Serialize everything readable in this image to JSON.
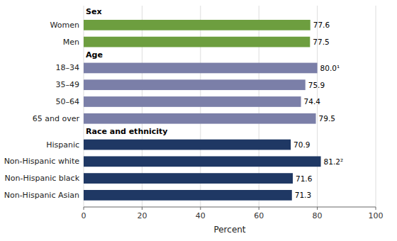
{
  "chart_data": {
    "type": "bar",
    "orientation": "horizontal",
    "categories": [
      "Women",
      "Men",
      "18–34",
      "35–49",
      "50–64",
      "65 and over",
      "Hispanic",
      "Non-Hispanic white",
      "Non-Hispanic black",
      "Non-Hispanic Asian"
    ],
    "values": [
      77.6,
      77.5,
      80.0,
      75.9,
      74.4,
      79.5,
      70.9,
      81.2,
      71.6,
      71.3
    ],
    "value_labels": [
      "77.6",
      "77.5",
      "80.0¹",
      "75.9",
      "74.4",
      "79.5",
      "70.9",
      "81.2²",
      "71.6",
      "71.3"
    ],
    "colors": [
      "#6d9e3f",
      "#6d9e3f",
      "#7b7fa8",
      "#7b7fa8",
      "#7b7fa8",
      "#7b7fa8",
      "#1f3864",
      "#1f3864",
      "#1f3864",
      "#1f3864"
    ],
    "groups": [
      {
        "name": "Sex",
        "categories": [
          "Women",
          "Men"
        ]
      },
      {
        "name": "Age",
        "categories": [
          "18–34",
          "35–49",
          "50–64",
          "65 and over"
        ]
      },
      {
        "name": "Race and ethnicity",
        "categories": [
          "Hispanic",
          "Non-Hispanic white",
          "Non-Hispanic black",
          "Non-Hispanic Asian"
        ]
      }
    ],
    "xlabel": "Percent",
    "xlim": [
      0,
      100
    ],
    "xticks": [
      0,
      20,
      40,
      60,
      80,
      100
    ],
    "grid": true,
    "data_labels": true
  }
}
